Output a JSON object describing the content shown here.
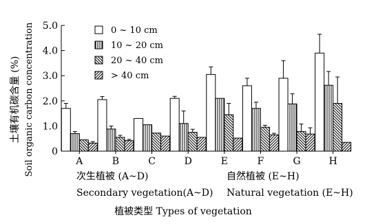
{
  "chart_data": {
    "type": "bar",
    "ylabel_cn": "土壤有机碳含量 (%)",
    "ylabel_en": "Soil organic carbon concentration",
    "xlabel": "植被类型 Types of vegetation",
    "ylim": [
      0,
      5.0
    ],
    "yticks": [
      "0",
      "1.0",
      "2.0",
      "3.0",
      "4.0",
      "5.0"
    ],
    "categories": [
      "A",
      "B",
      "C",
      "D",
      "E",
      "F",
      "G",
      "H"
    ],
    "groups": [
      {
        "label_cn": "次生植被 (A~D)",
        "label_en": "Secondary vegetation(A~D)"
      },
      {
        "label_cn": "自然植被 (E~H)",
        "label_en": "Natural vegetation (E~H)"
      }
    ],
    "series": [
      {
        "name": "0 ~ 10 cm",
        "pattern": "open",
        "values": [
          1.7,
          2.05,
          1.3,
          2.1,
          3.05,
          2.6,
          2.9,
          3.9
        ],
        "errors": [
          0.2,
          0.12,
          0.0,
          0.08,
          0.3,
          0.3,
          0.7,
          0.75
        ]
      },
      {
        "name": "10 ~ 20 cm",
        "pattern": "vertical",
        "values": [
          0.7,
          0.88,
          1.05,
          1.1,
          2.1,
          1.7,
          1.88,
          2.62
        ],
        "errors": [
          0.08,
          0.12,
          0.0,
          0.5,
          0.0,
          0.25,
          0.4,
          0.55
        ]
      },
      {
        "name": "20 ~ 40 cm",
        "pattern": "back-diag",
        "values": [
          0.45,
          0.55,
          0.72,
          0.75,
          1.45,
          0.95,
          0.78,
          1.9
        ],
        "errors": [
          0.0,
          0.08,
          0.0,
          0.12,
          0.45,
          0.08,
          0.3,
          1.05
        ]
      },
      {
        "name": "> 40 cm",
        "pattern": "fwd-diag",
        "values": [
          0.32,
          0.42,
          0.6,
          0.55,
          0.52,
          0.65,
          0.68,
          0.35
        ],
        "errors": [
          0.06,
          0.05,
          0.0,
          0.0,
          0.0,
          0.06,
          0.25,
          0.0
        ]
      }
    ]
  }
}
